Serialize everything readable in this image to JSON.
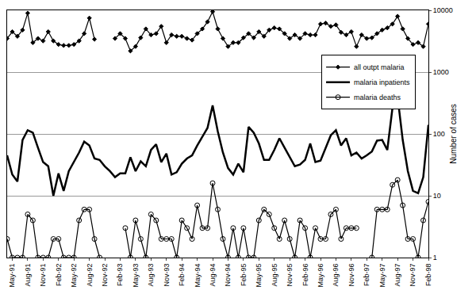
{
  "chart_data": {
    "type": "line",
    "y_label": "Number of cases",
    "log": "y",
    "grid": true,
    "legend": "top-right",
    "ylim": [
      1,
      10000
    ],
    "yticks": [
      1,
      10,
      100,
      1000,
      10000
    ],
    "categories": [
      null,
      "May-91",
      null,
      null,
      "Aug-91",
      null,
      null,
      "Nov-91",
      null,
      null,
      "Feb-92",
      null,
      null,
      "May-92",
      null,
      null,
      "Aug-92",
      null,
      null,
      "Nov-92",
      null,
      null,
      "Feb-93",
      null,
      null,
      "May-93",
      null,
      null,
      "Aug-93",
      null,
      null,
      "Nov-93",
      null,
      null,
      "Feb-94",
      null,
      null,
      "May-94",
      null,
      null,
      "Aug-94",
      null,
      null,
      "Nov-94",
      null,
      null,
      "Feb-95",
      null,
      null,
      "May-95",
      null,
      null,
      "Aug-95",
      null,
      null,
      "Nov-95",
      null,
      null,
      "Feb-96",
      null,
      null,
      "May-96",
      null,
      null,
      "Aug-96",
      null,
      null,
      "Nov-96",
      null,
      null,
      "Feb-97",
      null,
      null,
      "May-97",
      null,
      null,
      "Aug-97",
      null,
      null,
      "Nov-97",
      null,
      null,
      "Feb-98"
    ],
    "series": [
      {
        "name": "all outpt malaria",
        "color": "#000000",
        "marker": "diamond",
        "line_style": "solid",
        "values": [
          3500,
          4500,
          3800,
          4800,
          9000,
          3000,
          3500,
          3200,
          4500,
          3200,
          2800,
          2700,
          2700,
          2800,
          3200,
          4200,
          7500,
          3400,
          null,
          null,
          null,
          3500,
          4200,
          3500,
          2200,
          2600,
          3600,
          5000,
          4000,
          4200,
          5500,
          3000,
          4000,
          3800,
          3800,
          3500,
          3300,
          4200,
          5000,
          6500,
          9500,
          5000,
          3500,
          2600,
          3000,
          3000,
          3600,
          4200,
          3600,
          4500,
          3800,
          4800,
          5200,
          5000,
          4200,
          3500,
          4000,
          3500,
          4200,
          4000,
          4000,
          6000,
          6200,
          5500,
          5800,
          4400,
          4000,
          4500,
          2600,
          4000,
          3500,
          3600,
          4200,
          4800,
          5200,
          6000,
          8000,
          5000,
          3500,
          2800,
          3000,
          2600,
          6000
        ]
      },
      {
        "name": "malaria inpatients",
        "color": "#000000",
        "marker": "none",
        "line_style": "solid",
        "values": [
          45,
          22,
          17,
          80,
          115,
          105,
          60,
          35,
          30,
          10,
          23,
          12,
          25,
          35,
          50,
          75,
          65,
          40,
          38,
          30,
          25,
          20,
          23,
          23,
          42,
          25,
          36,
          30,
          55,
          68,
          35,
          48,
          22,
          24,
          33,
          40,
          45,
          65,
          90,
          125,
          290,
          110,
          50,
          28,
          22,
          33,
          24,
          130,
          105,
          70,
          38,
          38,
          55,
          85,
          60,
          42,
          30,
          32,
          38,
          70,
          35,
          37,
          60,
          95,
          115,
          65,
          85,
          45,
          50,
          40,
          45,
          52,
          78,
          80,
          55,
          260,
          400,
          80,
          25,
          12,
          11,
          20,
          140
        ]
      },
      {
        "name": "malaria deaths",
        "color": "#000000",
        "marker": "circle-open",
        "line_style": "solid",
        "values": [
          2,
          1,
          1,
          1,
          5,
          4,
          1,
          1,
          1,
          2,
          2,
          1,
          1,
          1,
          4,
          6,
          6,
          2,
          1,
          null,
          null,
          null,
          null,
          3,
          1,
          4,
          2,
          1,
          5,
          4,
          2,
          2,
          2,
          1,
          4,
          3,
          2,
          7,
          3,
          3,
          16,
          6,
          2,
          1,
          3,
          1,
          3,
          1,
          1,
          4,
          6,
          5,
          3,
          2,
          4,
          2,
          1,
          4,
          3,
          1,
          3,
          2,
          2,
          5,
          6,
          2,
          3,
          3,
          3,
          null,
          null,
          1,
          6,
          6,
          6,
          15,
          18,
          7,
          2,
          2,
          1,
          4,
          8
        ]
      }
    ]
  }
}
